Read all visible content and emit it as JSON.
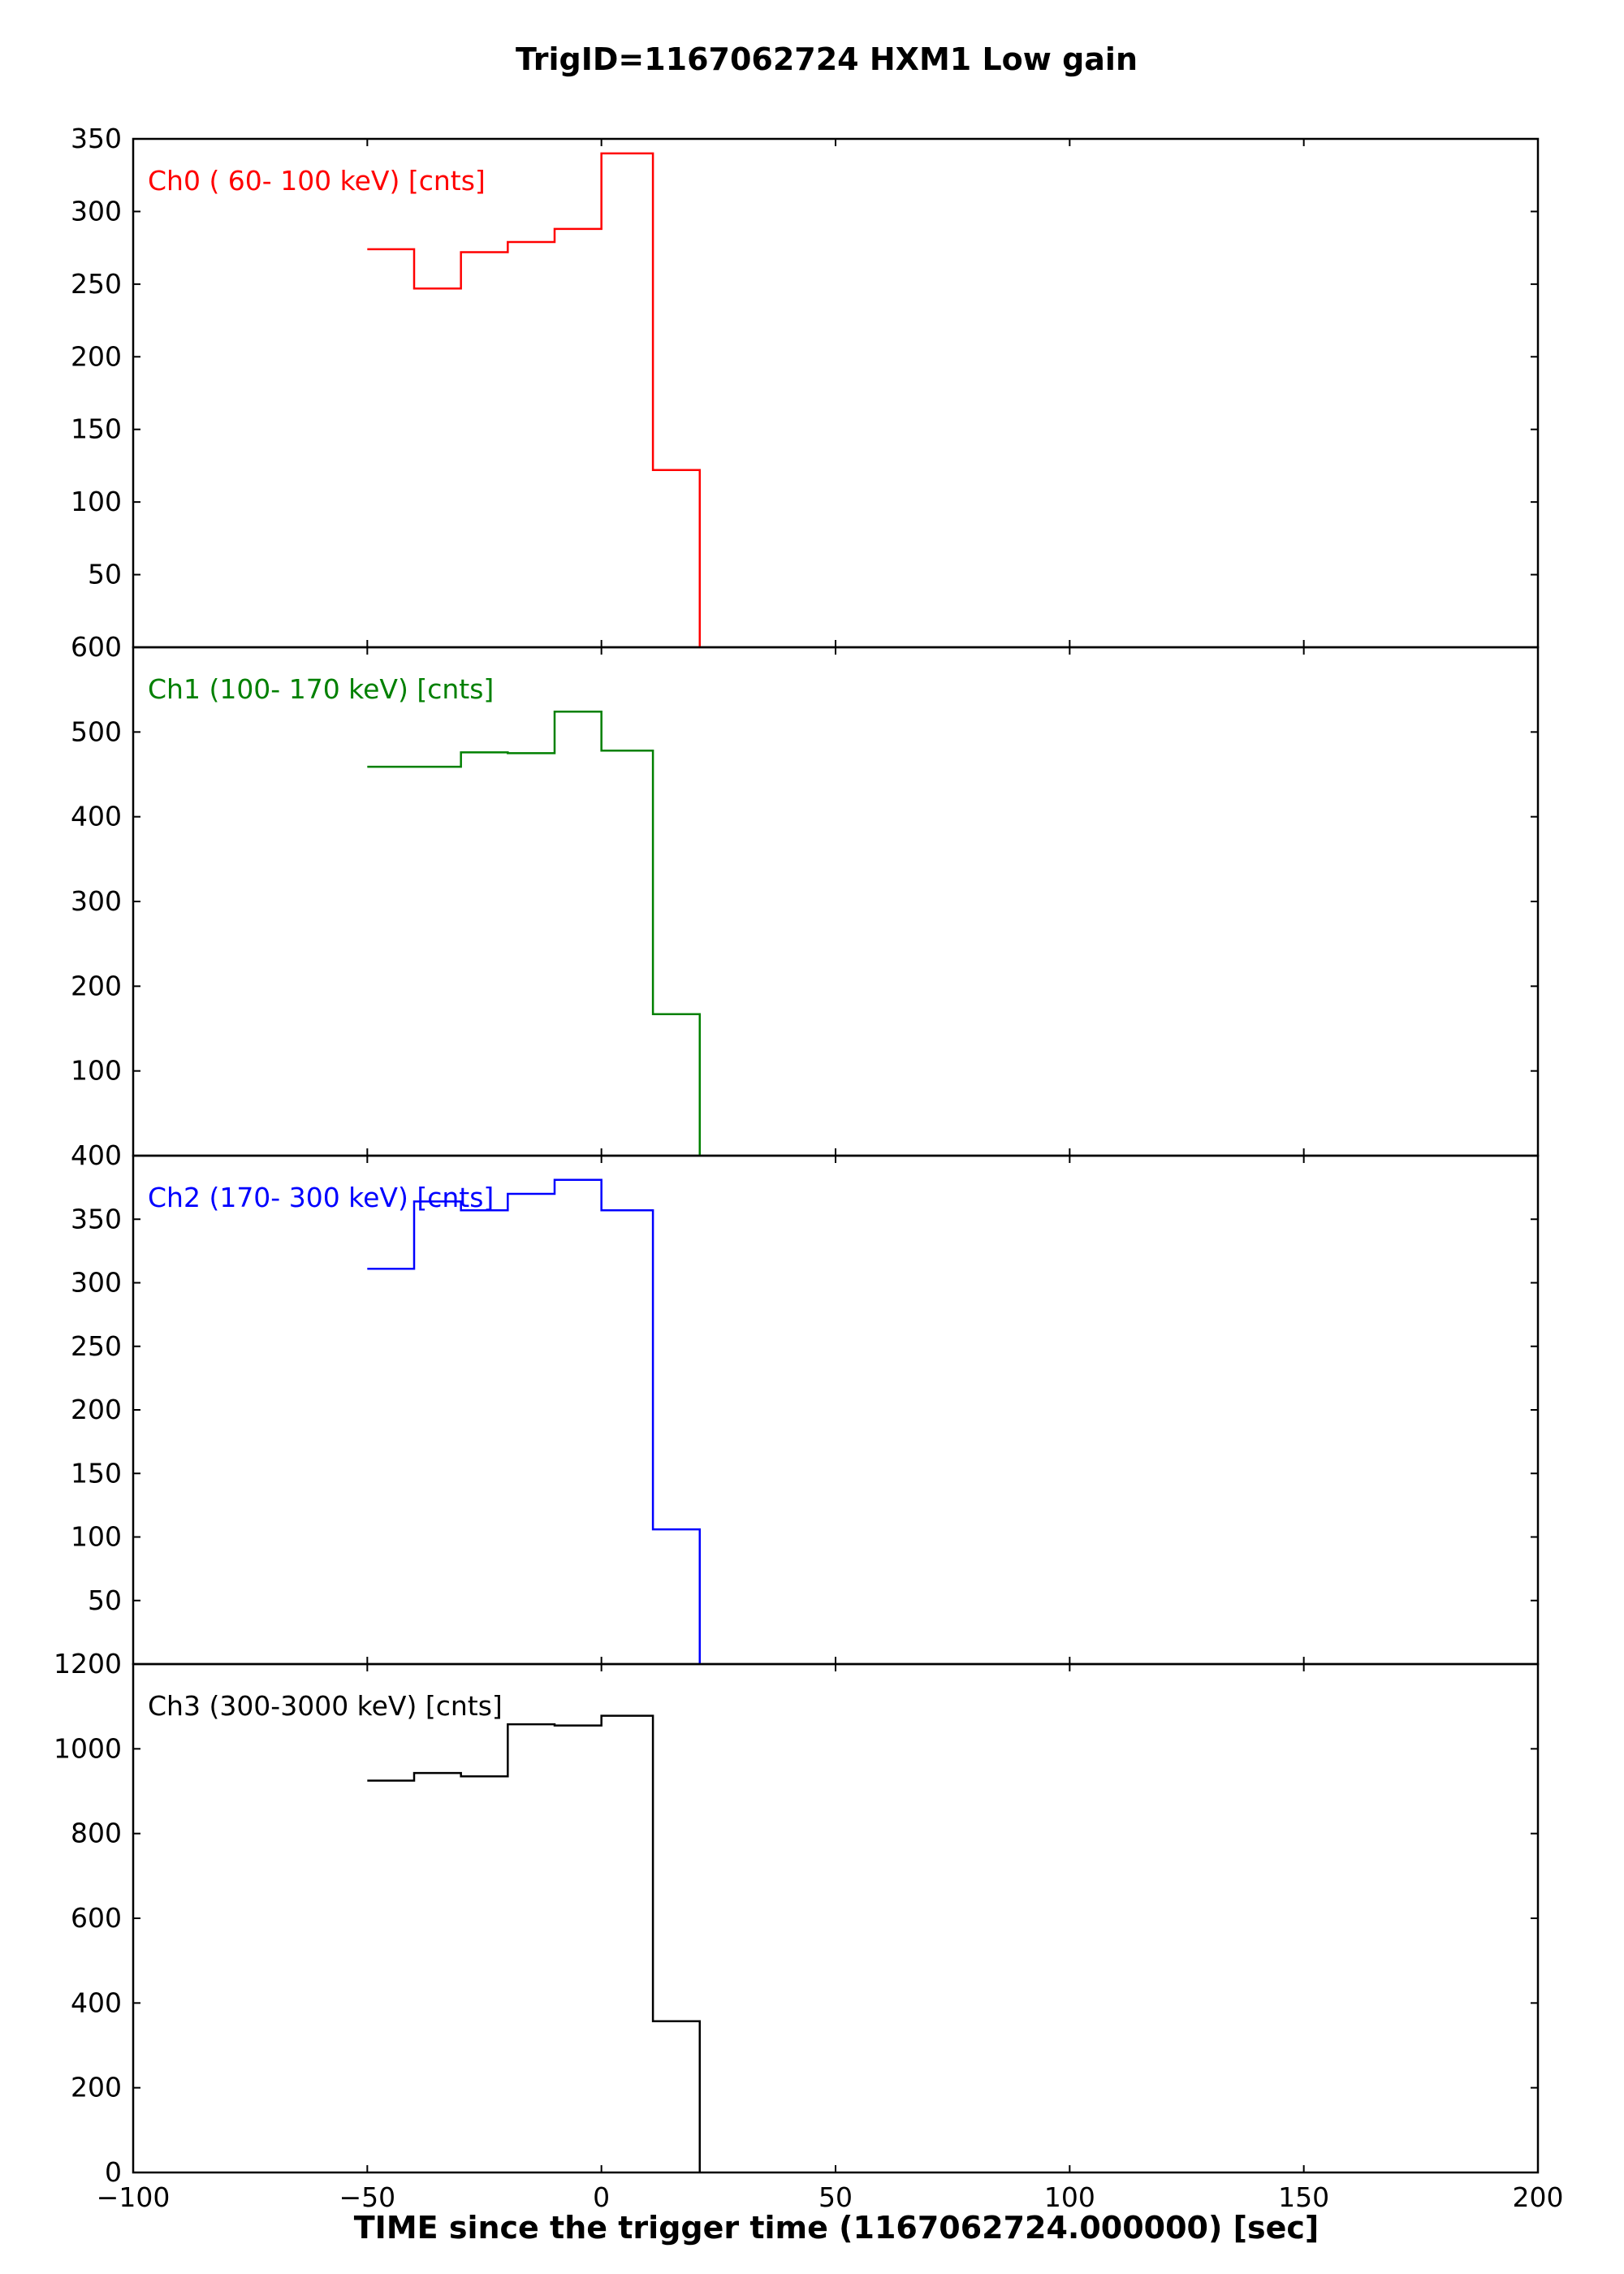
{
  "title": "TrigID=1167062724 HXM1 Low gain",
  "xlabel": "TIME since the trigger time (1167062724.000000) [sec]",
  "chart_data": {
    "type": "line",
    "drawstyle": "steps",
    "title": "TrigID=1167062724 HXM1 Low gain",
    "xlabel": "TIME since the trigger time (1167062724.000000) [sec]",
    "xlim": [
      -100,
      200
    ],
    "xticks": [
      -100,
      -50,
      0,
      50,
      100,
      150,
      200
    ],
    "xtick_labels": [
      "−100",
      "−50",
      "0",
      "50",
      "100",
      "150",
      "200"
    ],
    "grid": false,
    "bin_edges": [
      -50,
      -40,
      -30,
      -20,
      -10,
      0,
      11,
      21
    ],
    "panels": [
      {
        "label": "Ch0 ( 60- 100 keV) [cnts]",
        "color": "#ff0000",
        "ylim": [
          0,
          350
        ],
        "yticks": [
          50,
          100,
          150,
          200,
          250,
          300,
          350
        ],
        "ytick_labels": [
          "50",
          "100",
          "150",
          "200",
          "250",
          "300",
          "350"
        ],
        "values": [
          274,
          247,
          272,
          279,
          288,
          340,
          122
        ]
      },
      {
        "label": "Ch1 (100- 170 keV) [cnts]",
        "color": "#008000",
        "ylim": [
          0,
          600
        ],
        "yticks": [
          100,
          200,
          300,
          400,
          500,
          600
        ],
        "ytick_labels": [
          "100",
          "200",
          "300",
          "400",
          "500",
          "600"
        ],
        "values": [
          459,
          459,
          476,
          475,
          524,
          478,
          167
        ]
      },
      {
        "label": "Ch2 (170- 300 keV) [cnts]",
        "color": "#0000ff",
        "ylim": [
          0,
          400
        ],
        "yticks": [
          50,
          100,
          150,
          200,
          250,
          300,
          350,
          400
        ],
        "ytick_labels": [
          "50",
          "100",
          "150",
          "200",
          "250",
          "300",
          "350",
          "400"
        ],
        "values": [
          311,
          364,
          357,
          370,
          381,
          357,
          106
        ]
      },
      {
        "label": "Ch3 (300-3000 keV) [cnts]",
        "color": "#000000",
        "ylim": [
          0,
          1200
        ],
        "yticks": [
          0,
          200,
          400,
          600,
          800,
          1000,
          1200
        ],
        "ytick_labels": [
          "0",
          "200",
          "400",
          "600",
          "800",
          "1000",
          "1200"
        ],
        "values": [
          925,
          943,
          935,
          1058,
          1055,
          1078,
          357
        ]
      }
    ]
  }
}
